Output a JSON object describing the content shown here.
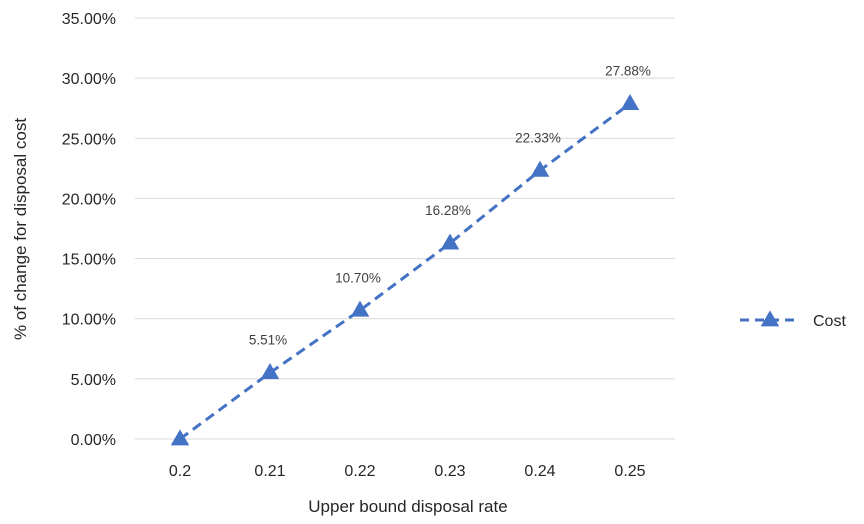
{
  "chart_data": {
    "type": "line",
    "categories": [
      "0.2",
      "0.21",
      "0.22",
      "0.23",
      "0.24",
      "0.25"
    ],
    "series": [
      {
        "name": "Cost",
        "values": [
          0.0,
          5.51,
          10.7,
          16.28,
          22.33,
          27.88
        ],
        "data_labels": [
          "",
          "5.51%",
          "10.70%",
          "16.28%",
          "22.33%",
          "27.88%"
        ],
        "color": "#4472C4",
        "line_style": "dashed",
        "marker": "triangle"
      }
    ],
    "xlabel": "Upper bound disposal rate",
    "ylabel": "% of change for disposal cost",
    "ylim": [
      0,
      35
    ],
    "ytick_values": [
      0,
      5,
      10,
      15,
      20,
      25,
      30,
      35
    ],
    "yticks": [
      "0.00%",
      "5.00%",
      "10.00%",
      "15.00%",
      "20.00%",
      "25.00%",
      "30.00%",
      "35.00%"
    ],
    "grid": true,
    "legend_position": "right"
  }
}
